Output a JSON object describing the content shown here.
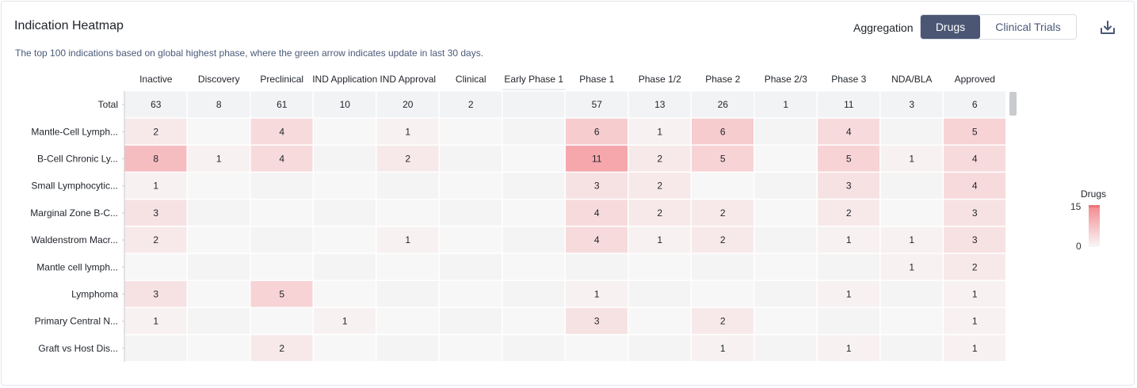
{
  "header": {
    "title": "Indication Heatmap",
    "subtitle": "The top 100 indications based on global highest phase, where the green arrow indicates update in last 30 days.",
    "aggregation_label": "Aggregation",
    "tabs": [
      {
        "label": "Drugs",
        "active": true
      },
      {
        "label": "Clinical Trials",
        "active": false
      }
    ],
    "download_icon": "download-icon"
  },
  "legend": {
    "title": "Drugs",
    "max_label": "15",
    "min_label": "0",
    "color_high": "#f48a90",
    "color_low": "#f8f8f8"
  },
  "chart_data": {
    "type": "heatmap",
    "columns": [
      "Inactive",
      "Discovery",
      "Preclinical",
      "IND Application",
      "IND Approval",
      "Clinical",
      "Early Phase 1",
      "Phase 1",
      "Phase 1/2",
      "Phase 2",
      "Phase 2/3",
      "Phase 3",
      "NDA/BLA",
      "Approved"
    ],
    "rows": [
      "Total",
      "Mantle-Cell Lymph...",
      "B-Cell Chronic Ly...",
      "Small Lymphocytic...",
      "Marginal Zone B-C...",
      "Waldenstrom Macr...",
      "Mantle cell lymph...",
      "Lymphoma",
      "Primary Central N...",
      "Graft vs Host Dis..."
    ],
    "values": [
      [
        63,
        8,
        61,
        10,
        20,
        2,
        null,
        57,
        13,
        26,
        1,
        11,
        3,
        6
      ],
      [
        2,
        null,
        4,
        null,
        1,
        null,
        null,
        6,
        1,
        6,
        null,
        4,
        null,
        5
      ],
      [
        8,
        1,
        4,
        null,
        2,
        null,
        null,
        11,
        2,
        5,
        null,
        5,
        1,
        4
      ],
      [
        1,
        null,
        null,
        null,
        null,
        null,
        null,
        3,
        2,
        null,
        null,
        3,
        null,
        4
      ],
      [
        3,
        null,
        null,
        null,
        null,
        null,
        null,
        4,
        2,
        2,
        null,
        2,
        null,
        3
      ],
      [
        2,
        null,
        null,
        null,
        1,
        null,
        null,
        4,
        1,
        2,
        null,
        1,
        1,
        3
      ],
      [
        null,
        null,
        null,
        null,
        null,
        null,
        null,
        null,
        null,
        null,
        null,
        null,
        1,
        2
      ],
      [
        3,
        null,
        5,
        null,
        null,
        null,
        null,
        1,
        null,
        null,
        null,
        1,
        null,
        1
      ],
      [
        1,
        null,
        null,
        1,
        null,
        null,
        null,
        3,
        null,
        2,
        null,
        null,
        null,
        1
      ],
      [
        null,
        null,
        2,
        null,
        null,
        null,
        null,
        null,
        null,
        1,
        null,
        1,
        null,
        1
      ]
    ],
    "color_range": [
      0,
      15
    ],
    "total_row_color": "#f2f3f5"
  }
}
